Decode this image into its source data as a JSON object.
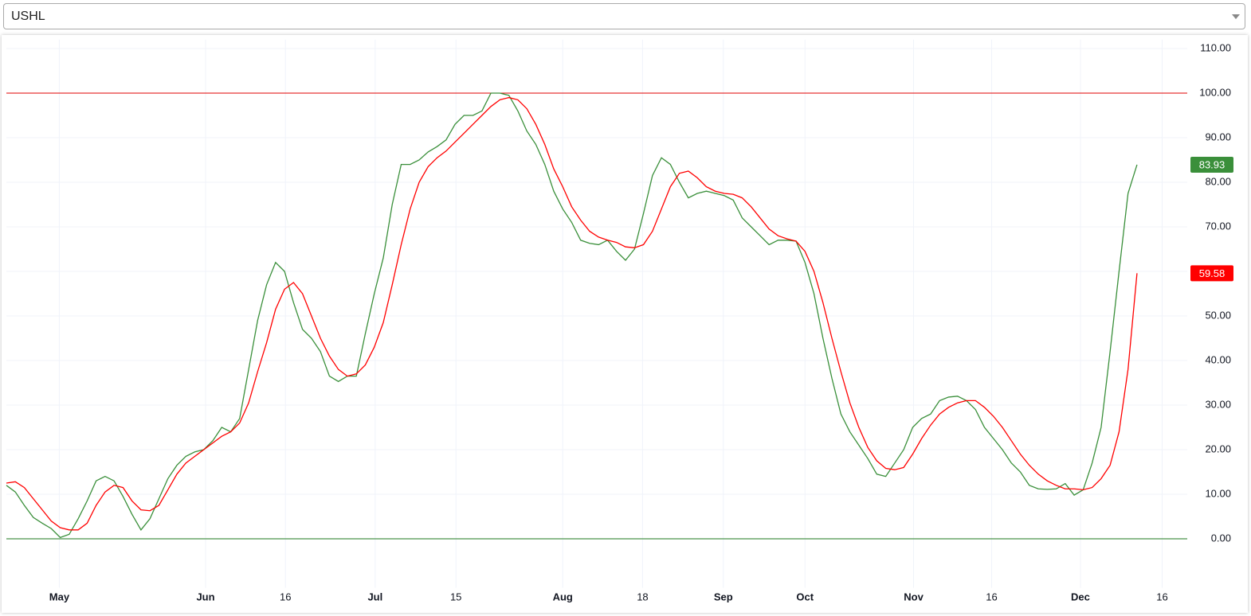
{
  "ticker": "USHL",
  "chart_data": {
    "type": "line",
    "xlim": [
      0,
      131.6
    ],
    "xticks": [
      {
        "value": 5.9,
        "label": "May"
      },
      {
        "value": 22.2,
        "label": "Jun"
      },
      {
        "value": 31.1,
        "label": "16"
      },
      {
        "value": 41.1,
        "label": "Jul"
      },
      {
        "value": 50.1,
        "label": "15"
      },
      {
        "value": 62.0,
        "label": "Aug"
      },
      {
        "value": 70.9,
        "label": "18"
      },
      {
        "value": 79.9,
        "label": "Sep"
      },
      {
        "value": 89.0,
        "label": "Oct"
      },
      {
        "value": 101.1,
        "label": "Nov"
      },
      {
        "value": 109.8,
        "label": "16"
      },
      {
        "value": 119.7,
        "label": "Dec"
      },
      {
        "value": 128.8,
        "label": "16"
      }
    ],
    "ylim": [
      -11,
      112
    ],
    "yticks": [
      {
        "value": 0,
        "label": "0.00"
      },
      {
        "value": 10,
        "label": "10.00"
      },
      {
        "value": 20,
        "label": "20.00"
      },
      {
        "value": 30,
        "label": "30.00"
      },
      {
        "value": 40,
        "label": "40.00"
      },
      {
        "value": 50,
        "label": "50.00"
      },
      {
        "value": 60,
        "label": "60.00"
      },
      {
        "value": 70,
        "label": "70.00"
      },
      {
        "value": 80,
        "label": "80.00"
      },
      {
        "value": 90,
        "label": "90.00"
      },
      {
        "value": 100,
        "label": "100.00"
      },
      {
        "value": 110,
        "label": "110.00"
      }
    ],
    "grid": true,
    "hlines": [
      {
        "value": 100,
        "color": "#e00000"
      },
      {
        "value": 0,
        "color": "#1e7a1e"
      }
    ],
    "series": [
      {
        "color": "#3a8f3a",
        "values": [
          12,
          10.5,
          7.5,
          4.8,
          3.5,
          2.3,
          0.3,
          1,
          4.5,
          8.5,
          13,
          14,
          13,
          9.5,
          5.5,
          2,
          4.5,
          9,
          13.5,
          16.5,
          18.5,
          19.5,
          20,
          22,
          25,
          24,
          27,
          38,
          49,
          57,
          62,
          60,
          53,
          47,
          45,
          42,
          36.5,
          35.3,
          36.5,
          36.5,
          46,
          55,
          63,
          75,
          84,
          84,
          85,
          86.8,
          88,
          89.5,
          93,
          95,
          95,
          96,
          100,
          100,
          99.5,
          96,
          91.5,
          88.5,
          84,
          78,
          74,
          71,
          67,
          66.3,
          66,
          67,
          64.5,
          62.5,
          65,
          73,
          81.5,
          85.5,
          84,
          80,
          76.5,
          77.5,
          78,
          77.5,
          77,
          76,
          72,
          70,
          68,
          66,
          67,
          67,
          66.8,
          62,
          55,
          45,
          36,
          28,
          24,
          21,
          18,
          14.5,
          14,
          17,
          20,
          25,
          27,
          28,
          31,
          31.8,
          32,
          31,
          29,
          25,
          22.5,
          20,
          17,
          15,
          12,
          11.2,
          11.1,
          11.2,
          12.4,
          9.8,
          11,
          17,
          25,
          42,
          60,
          77.5,
          83.93
        ]
      },
      {
        "color": "#ff0000",
        "values": [
          12.5,
          12.8,
          11.5,
          9,
          6.5,
          4,
          2.5,
          2,
          2,
          3.5,
          7.5,
          10.5,
          12,
          11.5,
          8.5,
          6.5,
          6.3,
          7.5,
          11,
          14.5,
          17,
          18.5,
          20,
          21.5,
          23,
          24,
          26,
          30.5,
          37.5,
          44,
          51.5,
          56,
          57.5,
          55,
          50,
          45,
          41,
          38,
          36.5,
          37,
          39,
          43,
          48.5,
          57,
          66,
          74,
          80,
          83.5,
          85.5,
          87,
          89,
          91,
          93,
          95,
          97,
          98.5,
          99,
          98.5,
          96.5,
          93,
          88.5,
          83,
          79,
          74.5,
          71.5,
          69,
          67.7,
          67,
          66.5,
          65.5,
          65.3,
          66,
          69,
          74,
          79,
          82,
          82.5,
          81,
          79,
          78,
          77.5,
          77.3,
          76.5,
          74.5,
          72,
          69.5,
          68,
          67.3,
          66.8,
          64.5,
          60,
          53,
          45,
          37.5,
          30.5,
          25,
          20.5,
          17.5,
          15.8,
          15.5,
          16,
          19,
          22.5,
          25.5,
          28,
          29.5,
          30.5,
          31,
          31,
          29.5,
          27.5,
          25,
          22,
          19,
          16.5,
          14.5,
          13,
          12,
          11.2,
          11.2,
          11,
          11.5,
          13.5,
          16.5,
          24,
          38,
          59.58
        ]
      }
    ]
  }
}
